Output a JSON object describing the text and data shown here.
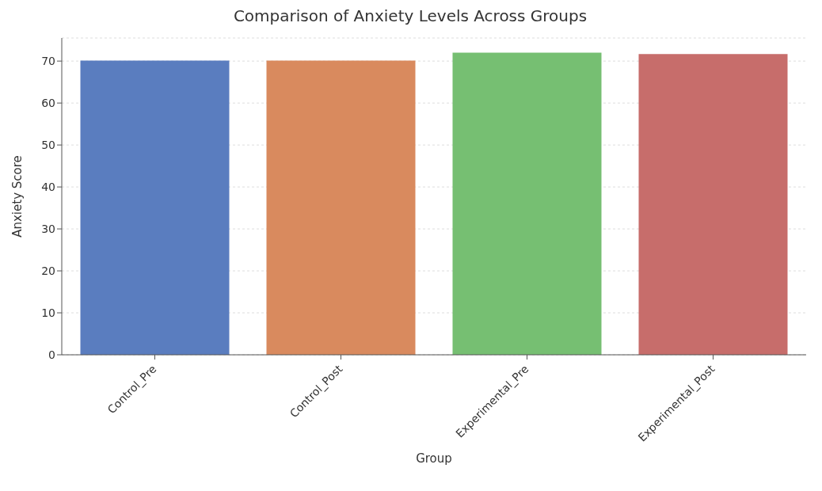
{
  "chart_data": {
    "type": "bar",
    "title": "Comparison of Anxiety Levels Across Groups",
    "xlabel": "Group",
    "ylabel": "Anxiety Score",
    "categories": [
      "Control_Pre",
      "Control_Post",
      "Experimental_Pre",
      "Experimental_Post"
    ],
    "values": [
      70.1,
      70.1,
      72.0,
      71.7
    ],
    "colors": [
      "#5a7dbf",
      "#d98a5e",
      "#76bf72",
      "#c76d6b"
    ],
    "ylim": [
      0,
      75.5
    ],
    "yticks": [
      0,
      10,
      20,
      30,
      40,
      50,
      60,
      70
    ],
    "grid": "y"
  }
}
